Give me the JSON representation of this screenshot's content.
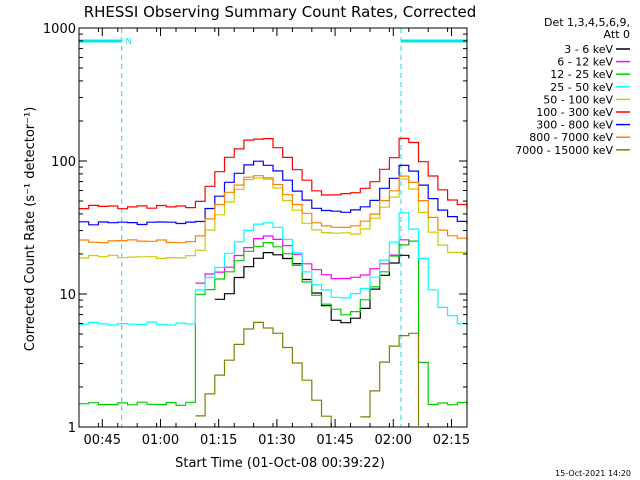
{
  "chart_data": {
    "type": "line",
    "title": "RHESSI Observing Summary Count Rates, Corrected",
    "xlabel": "Start Time (01-Oct-08 00:39:22)",
    "ylabel": "Corrected Count Rate (s⁻¹ detector⁻¹)",
    "y_scale": "log",
    "ylim": [
      1,
      1000
    ],
    "xlim_minutes_after_start": [
      0,
      100
    ],
    "x_tick_labels": [
      "00:45",
      "01:00",
      "01:15",
      "01:30",
      "01:45",
      "02:00",
      "02:15"
    ],
    "x_tick_minutes": [
      6,
      21,
      36,
      51,
      66,
      81,
      96
    ],
    "y_tick_labels": [
      "1",
      "10",
      "100",
      "1000"
    ],
    "y_tick_values": [
      1,
      10,
      100,
      1000
    ],
    "legend_header": [
      "Det 1,3,4,5,6,9,",
      "Att 0"
    ],
    "legend_position": "right",
    "footer_timestamp": "15-Oct-2021 14:20",
    "night_label": "N",
    "night_intervals_minutes": [
      [
        0,
        11
      ],
      [
        83,
        100
      ]
    ],
    "series": [
      {
        "name": "3 - 6 keV",
        "color": "#000000",
        "values": [
          null,
          null,
          null,
          null,
          null,
          null,
          null,
          null,
          null,
          null,
          null,
          null,
          null,
          null,
          9,
          10,
          13,
          16,
          19,
          20,
          20,
          19,
          17,
          13,
          10,
          8,
          6.5,
          6,
          6.5,
          8,
          11,
          14,
          17,
          19,
          19,
          null,
          null,
          null,
          null,
          null,
          null
        ]
      },
      {
        "name": "6 - 12 keV",
        "color": "#ff00ff",
        "values": [
          null,
          null,
          null,
          null,
          null,
          null,
          null,
          null,
          null,
          null,
          null,
          null,
          12,
          14,
          15,
          16,
          19,
          23,
          26,
          27,
          26,
          23,
          20,
          17,
          15,
          14,
          13,
          13,
          13.5,
          14,
          15.5,
          17,
          20,
          25,
          24,
          null,
          null,
          null,
          null,
          null,
          null
        ]
      },
      {
        "name": "12 - 25 keV",
        "color": "#00cc00",
        "values": [
          1.5,
          1.5,
          1.5,
          1.5,
          1.5,
          1.5,
          1.5,
          1.5,
          1.5,
          1.5,
          1.5,
          1.5,
          10,
          11,
          13,
          15,
          18,
          21,
          23,
          24,
          23,
          20,
          16,
          12.5,
          10,
          8.5,
          7.5,
          7,
          7.5,
          9,
          11,
          15,
          19,
          24,
          25,
          3,
          1.5,
          1.5,
          1.5,
          1.5,
          1.5
        ]
      },
      {
        "name": "25 - 50 keV",
        "color": "#00ffff",
        "values": [
          6,
          6,
          6,
          6,
          6,
          6,
          6,
          6,
          6,
          6,
          6,
          6,
          11,
          13,
          16,
          20,
          25,
          30,
          34,
          35,
          32,
          26,
          20,
          15,
          12,
          10.5,
          9.5,
          9.5,
          10,
          11,
          13,
          18,
          24,
          40,
          30,
          18,
          11,
          8,
          7,
          6,
          6
        ]
      },
      {
        "name": "50 - 100 keV",
        "color": "#cccc00",
        "values": [
          19,
          19,
          19,
          19,
          19,
          19,
          19,
          19,
          19,
          19,
          19,
          19,
          21,
          30,
          40,
          50,
          62,
          72,
          76,
          73,
          63,
          52,
          42,
          35,
          31,
          29,
          28,
          28,
          29,
          31,
          36,
          44,
          55,
          73,
          62,
          42,
          30,
          24,
          21,
          20,
          19
        ]
      },
      {
        "name": "100 - 300 keV",
        "color": "#ff0000",
        "values": [
          45,
          45,
          45,
          45,
          45,
          45,
          45,
          45,
          45,
          45,
          45,
          45,
          50,
          65,
          85,
          105,
          125,
          142,
          150,
          144,
          126,
          105,
          85,
          70,
          61,
          57,
          56,
          56,
          58,
          63,
          72,
          88,
          108,
          150,
          135,
          100,
          75,
          60,
          52,
          47,
          45
        ]
      },
      {
        "name": "300 - 800 keV",
        "color": "#0000ff",
        "values": [
          34,
          34,
          34,
          34,
          34,
          34,
          34,
          34,
          34,
          34,
          34,
          34,
          36,
          45,
          56,
          70,
          82,
          92,
          97,
          94,
          84,
          72,
          59,
          50,
          45,
          42,
          41,
          41,
          42,
          46,
          52,
          62,
          75,
          90,
          85,
          66,
          51,
          43,
          39,
          36,
          34
        ]
      },
      {
        "name": "800 - 7000 keV",
        "color": "#ff8000",
        "values": [
          25,
          25,
          25,
          25,
          25,
          25,
          25,
          25,
          25,
          25,
          25,
          25,
          27,
          36,
          46,
          57,
          67,
          74,
          76,
          74,
          66,
          57,
          47,
          40,
          35,
          33,
          32,
          32,
          33,
          36,
          41,
          49,
          60,
          76,
          68,
          50,
          37,
          31,
          28,
          26,
          25
        ]
      },
      {
        "name": "7000 - 15000 keV",
        "color": "#808000",
        "values": [
          null,
          null,
          null,
          null,
          null,
          null,
          null,
          null,
          null,
          null,
          null,
          null,
          1.2,
          1.8,
          2.5,
          3.2,
          4.2,
          5.3,
          6,
          5.7,
          5,
          4,
          3,
          2.2,
          1.6,
          1.2,
          1,
          null,
          null,
          1.2,
          1.9,
          3,
          4,
          5,
          5,
          1,
          null,
          null,
          null,
          null,
          null
        ]
      }
    ]
  }
}
